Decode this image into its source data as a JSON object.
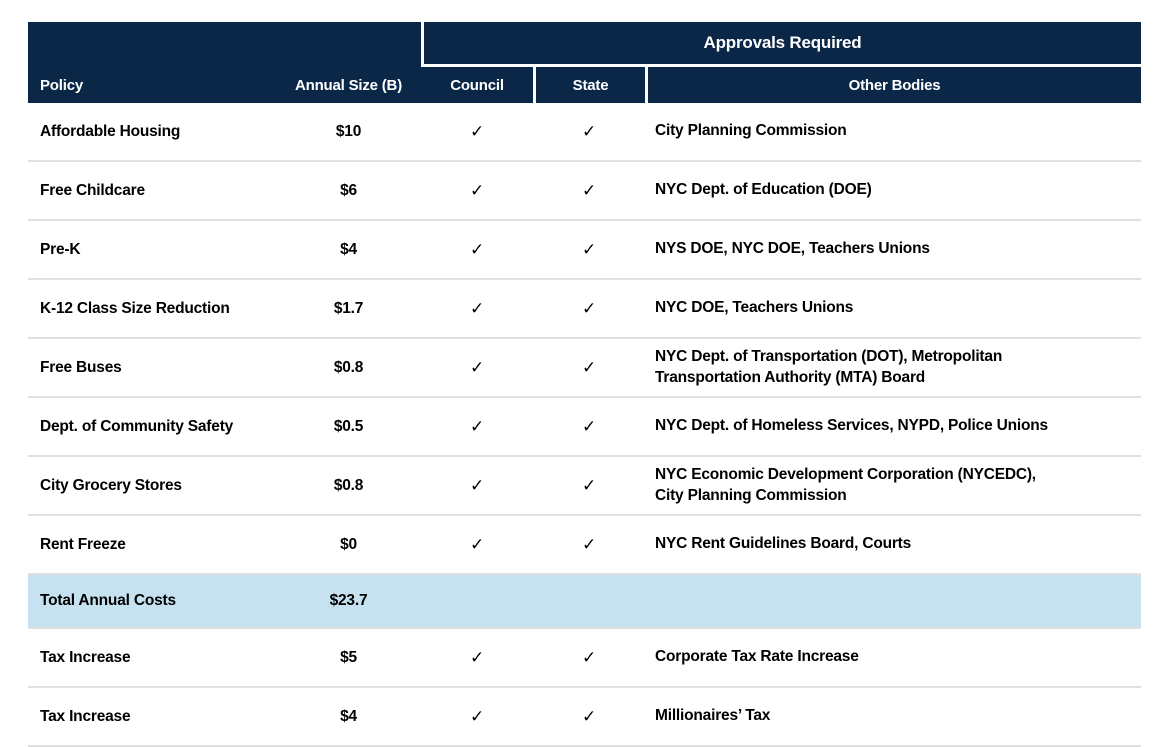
{
  "table": {
    "header": {
      "approvals": "Approvals Required",
      "columns": [
        "Policy",
        "Annual Size (B)",
        "Council",
        "State",
        "Other Bodies"
      ]
    },
    "colors": {
      "header_navy": "#0a2748",
      "highlight_blue": "#c6e2f0",
      "divider_gray": "#e0e0e0",
      "check_black": "#000000"
    },
    "check_glyph": "✓",
    "rows": [
      {
        "policy": "Affordable Housing",
        "annual_size": "$10",
        "council": "✓",
        "state": "✓",
        "other_bodies": "City Planning Commission",
        "highlight": false
      },
      {
        "policy": "Free Childcare",
        "annual_size": "$6",
        "council": "✓",
        "state": "✓",
        "other_bodies": "NYC Dept. of Education (DOE)",
        "highlight": false
      },
      {
        "policy": "Pre-K",
        "annual_size": "$4",
        "council": "✓",
        "state": "✓",
        "other_bodies": "NYS DOE, NYC DOE, Teachers Unions",
        "highlight": false
      },
      {
        "policy": "K-12 Class Size Reduction",
        "annual_size": "$1.7",
        "council": "✓",
        "state": "✓",
        "other_bodies": "NYC DOE, Teachers Unions",
        "highlight": false
      },
      {
        "policy": "Free Buses",
        "annual_size": "$0.8",
        "council": "✓",
        "state": "✓",
        "other_bodies": "NYC Dept. of Transportation (DOT), Metropolitan\nTransportation Authority (MTA) Board",
        "highlight": false
      },
      {
        "policy": "Dept. of Community Safety",
        "annual_size": "$0.5",
        "council": "✓",
        "state": "✓",
        "other_bodies": "NYC Dept. of Homeless Services, NYPD, Police Unions",
        "highlight": false
      },
      {
        "policy": "City Grocery Stores",
        "annual_size": "$0.8",
        "council": "✓",
        "state": "✓",
        "other_bodies": "NYC Economic Development Corporation (NYCEDC),\nCity Planning Commission",
        "highlight": false
      },
      {
        "policy": "Rent Freeze",
        "annual_size": "$0",
        "council": "✓",
        "state": "✓",
        "other_bodies": "NYC Rent Guidelines Board, Courts",
        "highlight": false
      },
      {
        "policy": "Total Annual Costs",
        "annual_size": "$23.7",
        "council": "",
        "state": "",
        "other_bodies": "",
        "highlight": true
      },
      {
        "policy": "Tax Increase",
        "annual_size": "$5",
        "council": "✓",
        "state": "✓",
        "other_bodies": "Corporate Tax Rate Increase",
        "highlight": false
      },
      {
        "policy": "Tax Increase",
        "annual_size": "$4",
        "council": "✓",
        "state": "✓",
        "other_bodies": "Millionaires’ Tax",
        "highlight": false
      }
    ]
  }
}
